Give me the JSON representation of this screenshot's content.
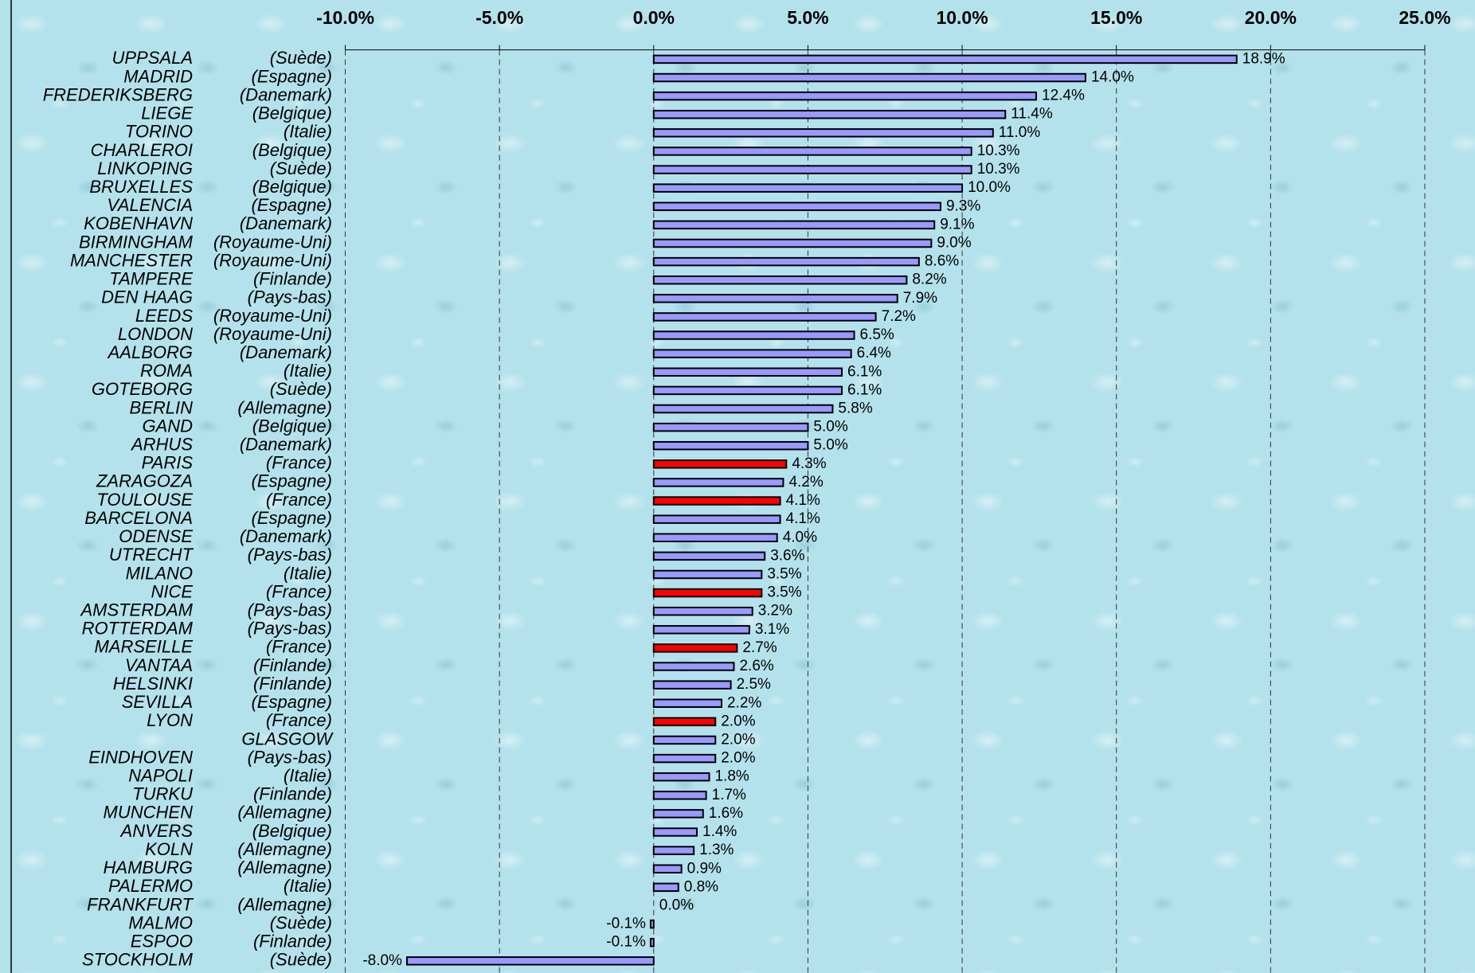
{
  "chart_data": {
    "type": "barh",
    "categories": [
      "UPPSALA",
      "MADRID",
      "FREDERIKSBERG",
      "LIEGE",
      "TORINO",
      "CHARLEROI",
      "LINKOPING",
      "BRUXELLES",
      "VALENCIA",
      "KOBENHAVN",
      "BIRMINGHAM",
      "MANCHESTER",
      "TAMPERE",
      "DEN HAAG",
      "LEEDS",
      "LONDON",
      "AALBORG",
      "ROMA",
      "GOTEBORG",
      "BERLIN",
      "GAND",
      "ARHUS",
      "PARIS",
      "ZARAGOZA",
      "TOULOUSE",
      "BARCELONA",
      "ODENSE",
      "UTRECHT",
      "MILANO",
      "NICE",
      "AMSTERDAM",
      "ROTTERDAM",
      "MARSEILLE",
      "VANTAA",
      "HELSINKI",
      "SEVILLA",
      "LYON",
      "GLASGOW",
      "EINDHOVEN",
      "NAPOLI",
      "TURKU",
      "MUNCHEN",
      "ANVERS",
      "KOLN",
      "HAMBURG",
      "PALERMO",
      "FRANKFURT",
      "MALMO",
      "ESPOO",
      "STOCKHOLM"
    ],
    "countries": [
      "(Suède)",
      "(Espagne)",
      "(Danemark)",
      "(Belgique)",
      "(Italie)",
      "(Belgique)",
      "(Suède)",
      "(Belgique)",
      "(Espagne)",
      "(Danemark)",
      "(Royaume-Uni)",
      "(Royaume-Uni)",
      "(Finlande)",
      "(Pays-bas)",
      "(Royaume-Uni)",
      "(Royaume-Uni)",
      "(Danemark)",
      "(Italie)",
      "(Suède)",
      "(Allemagne)",
      "(Belgique)",
      "(Danemark)",
      "(France)",
      "(Espagne)",
      "(France)",
      "(Espagne)",
      "(Danemark)",
      "(Pays-bas)",
      "(Italie)",
      "(France)",
      "(Pays-bas)",
      "(Pays-bas)",
      "(France)",
      "(Finlande)",
      "(Finlande)",
      "(Espagne)",
      "(France)",
      null,
      "(Pays-bas)",
      "(Italie)",
      "(Finlande)",
      "(Allemagne)",
      "(Belgique)",
      "(Allemagne)",
      "(Allemagne)",
      "(Italie)",
      "(Allemagne)",
      "(Suède)",
      "(Finlande)",
      "(Suède)"
    ],
    "values": [
      18.9,
      14.0,
      12.4,
      11.4,
      11.0,
      10.3,
      10.3,
      10.0,
      9.3,
      9.1,
      9.0,
      8.6,
      8.2,
      7.9,
      7.2,
      6.5,
      6.4,
      6.1,
      6.1,
      5.8,
      5.0,
      5.0,
      4.3,
      4.2,
      4.1,
      4.1,
      4.0,
      3.6,
      3.5,
      3.5,
      3.2,
      3.1,
      2.7,
      2.6,
      2.5,
      2.2,
      2.0,
      2.0,
      2.0,
      1.8,
      1.7,
      1.6,
      1.4,
      1.3,
      0.9,
      0.8,
      0.0,
      -0.1,
      -0.1,
      -8.0
    ],
    "value_labels": [
      "18.9%",
      "14.0%",
      "12.4%",
      "11.4%",
      "11.0%",
      "10.3%",
      "10.3%",
      "10.0%",
      "9.3%",
      "9.1%",
      "9.0%",
      "8.6%",
      "8.2%",
      "7.9%",
      "7.2%",
      "6.5%",
      "6.4%",
      "6.1%",
      "6.1%",
      "5.8%",
      "5.0%",
      "5.0%",
      "4.3%",
      "4.2%",
      "4.1%",
      "4.1%",
      "4.0%",
      "3.6%",
      "3.5%",
      "3.5%",
      "3.2%",
      "3.1%",
      "2.7%",
      "2.6%",
      "2.5%",
      "2.2%",
      "2.0%",
      "2.0%",
      "2.0%",
      "1.8%",
      "1.7%",
      "1.6%",
      "1.4%",
      "1.3%",
      "0.9%",
      "0.8%",
      "0.0%",
      "-0.1%",
      "-0.1%",
      "-8.0%"
    ],
    "colors": [
      "#9999ff",
      "#9999ff",
      "#9999ff",
      "#9999ff",
      "#9999ff",
      "#9999ff",
      "#9999ff",
      "#9999ff",
      "#9999ff",
      "#9999ff",
      "#9999ff",
      "#9999ff",
      "#9999ff",
      "#9999ff",
      "#9999ff",
      "#9999ff",
      "#9999ff",
      "#9999ff",
      "#9999ff",
      "#9999ff",
      "#9999ff",
      "#9999ff",
      "#ff0000",
      "#9999ff",
      "#ff0000",
      "#9999ff",
      "#9999ff",
      "#9999ff",
      "#9999ff",
      "#ff0000",
      "#9999ff",
      "#9999ff",
      "#ff0000",
      "#9999ff",
      "#9999ff",
      "#9999ff",
      "#ff0000",
      "#9999ff",
      "#9999ff",
      "#9999ff",
      "#9999ff",
      "#9999ff",
      "#9999ff",
      "#9999ff",
      "#9999ff",
      "#9999ff",
      "#9999ff",
      "#9999ff",
      "#9999ff",
      "#9999ff"
    ],
    "xlim": [
      -10,
      25
    ],
    "xticks": [
      {
        "value": -10,
        "label": "-10.0%"
      },
      {
        "value": -5,
        "label": "-5.0%"
      },
      {
        "value": 0,
        "label": "0.0%"
      },
      {
        "value": 5,
        "label": "5.0%"
      },
      {
        "value": 10,
        "label": "10.0%"
      },
      {
        "value": 15,
        "label": "15.0%"
      },
      {
        "value": 20,
        "label": "20.0%"
      },
      {
        "value": 25,
        "label": "25.0%"
      }
    ],
    "grid": true
  }
}
